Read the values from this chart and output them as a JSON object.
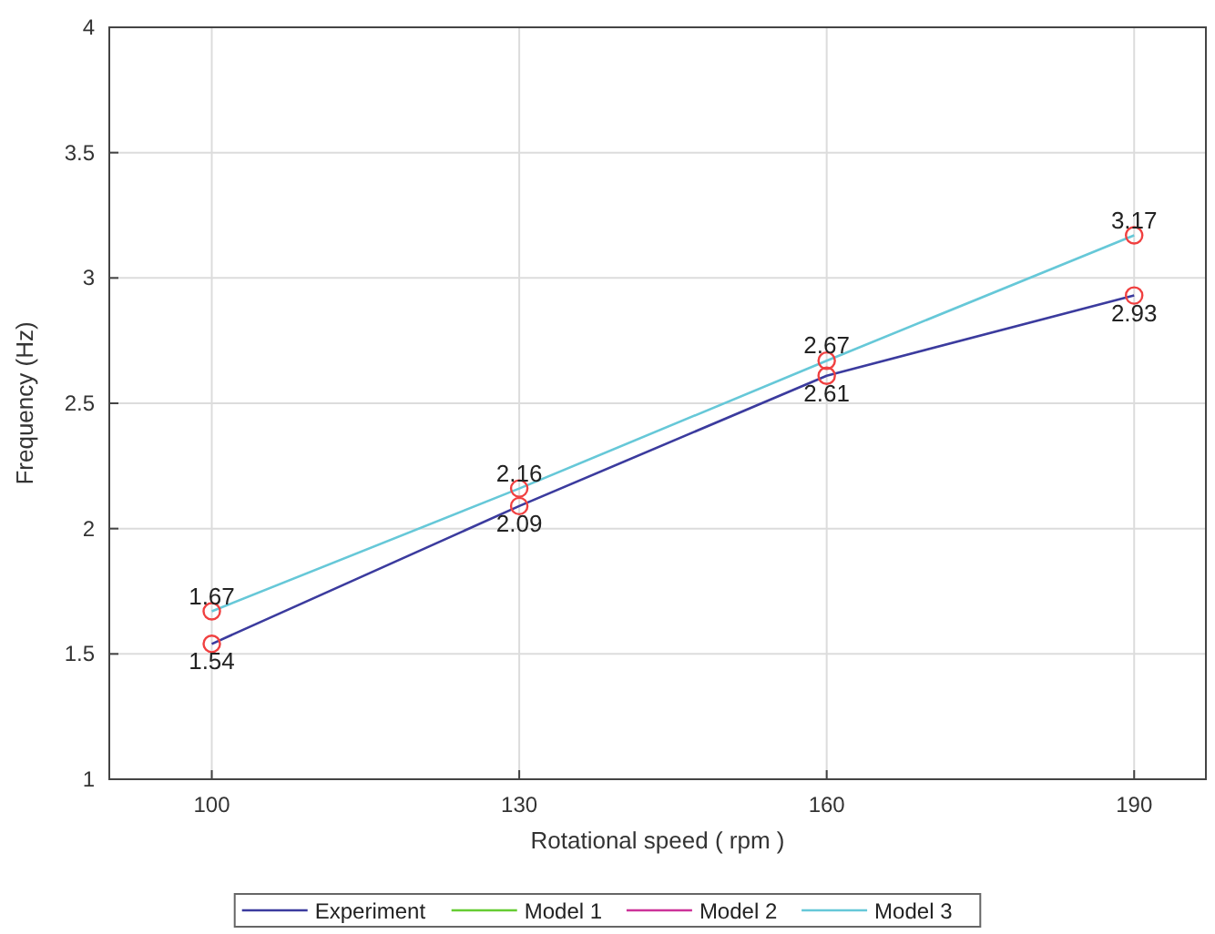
{
  "chart_data": {
    "type": "line",
    "xlabel": "Rotational speed ( rpm )",
    "ylabel": "Frequency (Hz)",
    "x": [
      100,
      130,
      160,
      190
    ],
    "series": [
      {
        "name": "Experiment",
        "color": "#3b3b9e",
        "values": [
          1.54,
          2.09,
          2.61,
          2.93
        ],
        "value_labels": [
          "1.54",
          "2.09",
          "2.61",
          "2.93"
        ]
      },
      {
        "name": "Model 1",
        "color": "#66cc33",
        "values": [
          null,
          null,
          null,
          null
        ]
      },
      {
        "name": "Model 2",
        "color": "#cc3399",
        "values": [
          null,
          null,
          null,
          null
        ]
      },
      {
        "name": "Model 3",
        "color": "#66c8d8",
        "values": [
          1.67,
          2.16,
          2.67,
          3.17
        ],
        "value_labels": [
          "1.67",
          "2.16",
          "2.67",
          "3.17"
        ]
      },
      {
        "type": "scatter",
        "color": "#f04040",
        "marker": "circle",
        "x": [
          100,
          130,
          160,
          190,
          100,
          130,
          160,
          190
        ],
        "values": [
          1.54,
          2.09,
          2.61,
          2.93,
          1.67,
          2.16,
          2.67,
          3.17
        ]
      }
    ],
    "xlim": [
      90,
      197
    ],
    "xticks": [
      100,
      130,
      160,
      190
    ],
    "ylim": [
      1,
      4
    ],
    "yticks": [
      1,
      1.5,
      2,
      2.5,
      3,
      3.5,
      4
    ],
    "grid": true,
    "legend": "bottom",
    "marker": "none",
    "line_style": "solid"
  }
}
